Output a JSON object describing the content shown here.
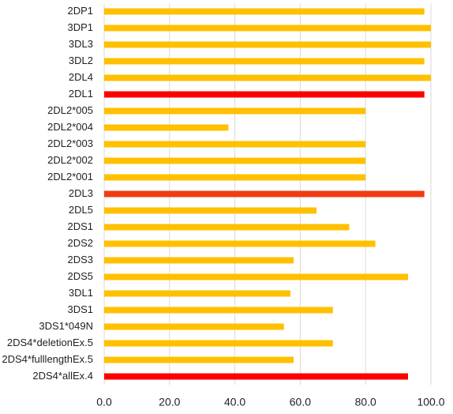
{
  "chart_data": {
    "type": "barh",
    "categories": [
      "2DP1",
      "3DP1",
      "3DL3",
      "3DL2",
      "2DL4",
      "2DL1",
      "2DL2*005",
      "2DL2*004",
      "2DL2*003",
      "2DL2*002",
      "2DL2*001",
      "2DL3",
      "2DL5",
      "2DS1",
      "2DS2",
      "2DS3",
      "2DS5",
      "3DL1",
      "3DS1",
      "3DS1*049N",
      "2DS4*deletionEx.5",
      "2DS4*fulllengthEx.5",
      "2DS4*allEx.4"
    ],
    "values": [
      98,
      100,
      100,
      98,
      100,
      98,
      80,
      38,
      80,
      80,
      80,
      98,
      65,
      75,
      83,
      58,
      93,
      57,
      70,
      55,
      70,
      58,
      93
    ],
    "colors": [
      "#ffc000",
      "#ffc000",
      "#ffc000",
      "#ffc000",
      "#ffc000",
      "#ff0000",
      "#ffc000",
      "#ffc000",
      "#ffc000",
      "#ffc000",
      "#ffc000",
      "#f03c10",
      "#ffc000",
      "#ffc000",
      "#ffc000",
      "#ffc000",
      "#ffc000",
      "#ffc000",
      "#ffc000",
      "#ffc000",
      "#ffc000",
      "#ffc000",
      "#ff0000"
    ],
    "xlim": [
      0,
      100
    ],
    "xticks": [
      {
        "value": 0,
        "label": "0.0"
      },
      {
        "value": 20,
        "label": "20.0"
      },
      {
        "value": 40,
        "label": "40.0"
      },
      {
        "value": 60,
        "label": "60.0"
      },
      {
        "value": 80,
        "label": "80.0"
      },
      {
        "value": 100,
        "label": "100.0"
      }
    ],
    "grid": true
  }
}
